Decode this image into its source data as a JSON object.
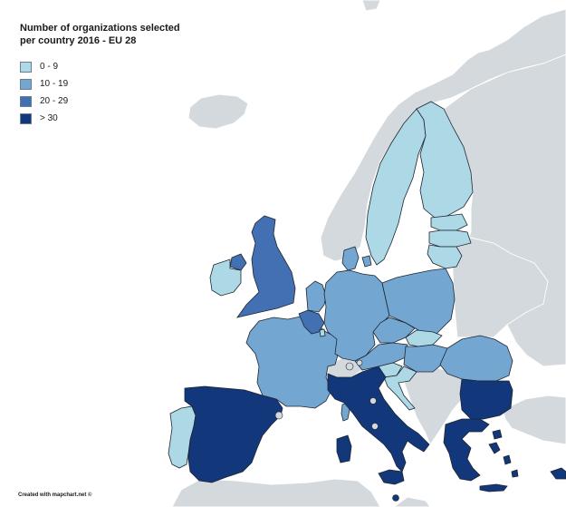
{
  "legend": {
    "title": "Number of organizations selected per country 2016 - EU 28",
    "items": [
      {
        "label": "0 - 9",
        "color": "#add8e6"
      },
      {
        "label": "10 - 19",
        "color": "#73a6d1"
      },
      {
        "label": "20 - 29",
        "color": "#4270b3"
      },
      {
        "label": "> 30",
        "color": "#12377a"
      }
    ]
  },
  "credit": "Created with mapchart.net ©",
  "colors": {
    "background": "#ffffff",
    "non_eu_land": "#d4d9dd",
    "border": "#1e2630"
  },
  "countries": [
    {
      "id": "portugal",
      "bin": "0 - 9",
      "color": "#add8e6"
    },
    {
      "id": "spain",
      "bin": "> 30",
      "color": "#12377a"
    },
    {
      "id": "france",
      "bin": "10 - 19",
      "color": "#73a6d1"
    },
    {
      "id": "italy",
      "bin": "> 30",
      "color": "#12377a"
    },
    {
      "id": "greece",
      "bin": "> 30",
      "color": "#12377a"
    },
    {
      "id": "bulgaria",
      "bin": "> 30",
      "color": "#12377a"
    },
    {
      "id": "romania",
      "bin": "10 - 19",
      "color": "#73a6d1"
    },
    {
      "id": "hungary",
      "bin": "10 - 19",
      "color": "#73a6d1"
    },
    {
      "id": "germany",
      "bin": "10 - 19",
      "color": "#73a6d1"
    },
    {
      "id": "poland",
      "bin": "10 - 19",
      "color": "#73a6d1"
    },
    {
      "id": "czechia",
      "bin": "10 - 19",
      "color": "#73a6d1"
    },
    {
      "id": "austria",
      "bin": "10 - 19",
      "color": "#73a6d1"
    },
    {
      "id": "netherlands",
      "bin": "10 - 19",
      "color": "#73a6d1"
    },
    {
      "id": "denmark",
      "bin": "10 - 19",
      "color": "#73a6d1"
    },
    {
      "id": "belgium",
      "bin": "20 - 29",
      "color": "#4270b3"
    },
    {
      "id": "united-kingdom",
      "bin": "20 - 29",
      "color": "#4270b3"
    },
    {
      "id": "ireland",
      "bin": "0 - 9",
      "color": "#add8e6"
    },
    {
      "id": "sweden",
      "bin": "0 - 9",
      "color": "#add8e6"
    },
    {
      "id": "finland",
      "bin": "0 - 9",
      "color": "#add8e6"
    },
    {
      "id": "estonia",
      "bin": "0 - 9",
      "color": "#add8e6"
    },
    {
      "id": "latvia",
      "bin": "0 - 9",
      "color": "#add8e6"
    },
    {
      "id": "lithuania",
      "bin": "0 - 9",
      "color": "#add8e6"
    },
    {
      "id": "slovakia",
      "bin": "0 - 9",
      "color": "#add8e6"
    },
    {
      "id": "slovenia",
      "bin": "0 - 9",
      "color": "#add8e6"
    },
    {
      "id": "croatia",
      "bin": "0 - 9",
      "color": "#add8e6"
    },
    {
      "id": "luxembourg",
      "bin": "0 - 9",
      "color": "#add8e6"
    },
    {
      "id": "cyprus",
      "bin": "> 30",
      "color": "#12377a"
    }
  ]
}
